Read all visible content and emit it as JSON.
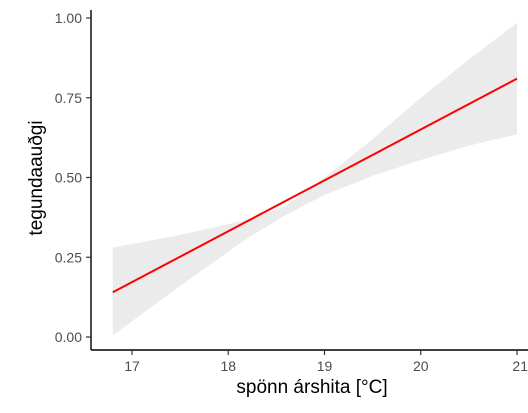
{
  "chart_data": {
    "type": "line",
    "title": "",
    "xlabel": "spönn árshita [°C]",
    "ylabel": "tegundaauðgi",
    "xlim": [
      16.8,
      21.0
    ],
    "ylim": [
      0.0,
      1.0
    ],
    "x_ticks": [
      17,
      18,
      19,
      20,
      21
    ],
    "x_tick_labels": [
      "17",
      "18",
      "19",
      "20",
      "21"
    ],
    "y_ticks": [
      0.0,
      0.25,
      0.5,
      0.75,
      1.0
    ],
    "y_tick_labels": [
      "0.00",
      "0.25",
      "0.50",
      "0.75",
      "1.00"
    ],
    "grid": false,
    "legend": "none",
    "series": [
      {
        "x": [
          16.8,
          21.0
        ],
        "y": [
          0.14,
          0.81
        ],
        "color": "#ff0000"
      }
    ],
    "confidence_band": {
      "color": "#ebebeb",
      "x": [
        16.8,
        17.5,
        18.2,
        18.6,
        19.0,
        19.5,
        20.0,
        20.5,
        21.0
      ],
      "lower": [
        0.005,
        0.16,
        0.31,
        0.383,
        0.445,
        0.505,
        0.555,
        0.6,
        0.635
      ],
      "upper": [
        0.28,
        0.32,
        0.367,
        0.412,
        0.5,
        0.62,
        0.75,
        0.87,
        0.985
      ]
    }
  }
}
